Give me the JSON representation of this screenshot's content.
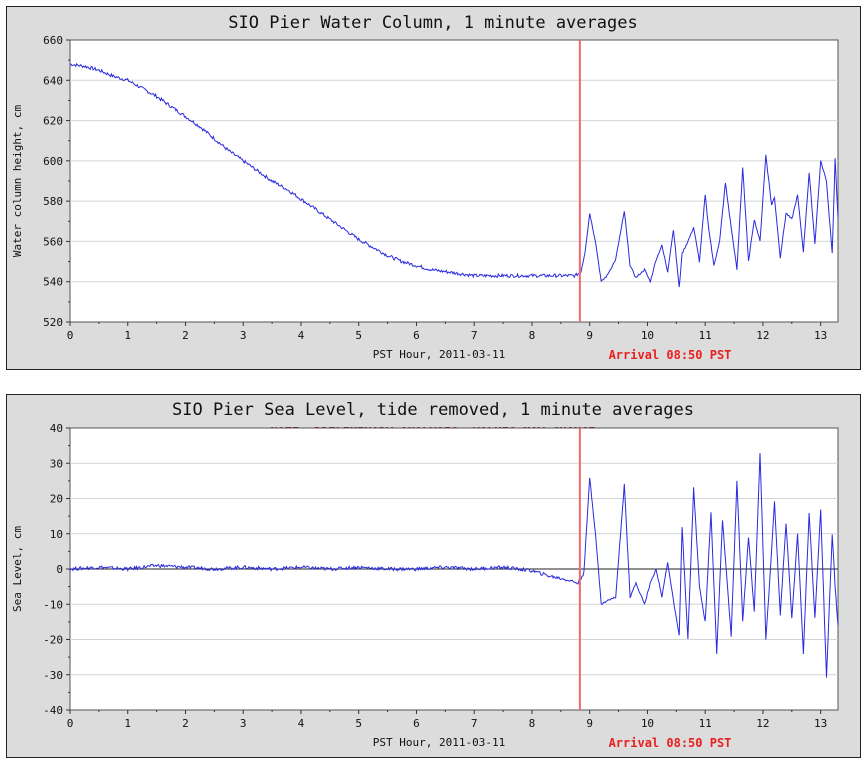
{
  "colors": {
    "series": "#2a2ae0",
    "arrival": "#ef6b6b",
    "arrival_text": "#e8201e",
    "note": "#8a1111",
    "zero_line": "#222222",
    "grid": "#d4d4d4",
    "panel_bg": "#dcdcdc"
  },
  "chart_data": [
    {
      "type": "line",
      "title": "SIO Pier Water Column, 1 minute averages",
      "note": "",
      "xlabel": "PST Hour, 2011-03-11",
      "ylabel": "Water column height, cm",
      "xlim": [
        0,
        13.3
      ],
      "ylim": [
        520,
        660
      ],
      "xticks": [
        0,
        1,
        2,
        3,
        4,
        5,
        6,
        7,
        8,
        9,
        10,
        11,
        12,
        13
      ],
      "yticks": [
        520,
        540,
        560,
        580,
        600,
        620,
        640,
        660
      ],
      "arrival_hour": 8.83,
      "arrival_label": "Arrival 08:50 PST",
      "zero_line": false,
      "grid": true,
      "series": [
        {
          "name": "Water column height",
          "x": [
            0,
            0.25,
            0.5,
            0.75,
            1,
            1.25,
            1.5,
            1.75,
            2,
            2.25,
            2.5,
            2.75,
            3,
            3.25,
            3.5,
            3.75,
            4,
            4.25,
            4.5,
            4.75,
            5,
            5.25,
            5.5,
            5.75,
            6,
            6.25,
            6.5,
            6.75,
            7,
            7.25,
            7.5,
            7.75,
            8,
            8.25,
            8.5,
            8.75,
            8.85,
            8.92,
            9,
            9.1,
            9.2,
            9.3,
            9.45,
            9.6,
            9.7,
            9.8,
            9.95,
            10.05,
            10.15,
            10.25,
            10.35,
            10.45,
            10.55,
            10.6,
            10.7,
            10.8,
            10.9,
            11,
            11.05,
            11.15,
            11.25,
            11.35,
            11.45,
            11.55,
            11.65,
            11.75,
            11.85,
            11.95,
            12.05,
            12.15,
            12.2,
            12.3,
            12.4,
            12.5,
            12.6,
            12.7,
            12.8,
            12.9,
            13,
            13.1,
            13.2,
            13.25,
            13.3
          ],
          "y": [
            648,
            647,
            645,
            642,
            640,
            636,
            632,
            627,
            622,
            617,
            611,
            605,
            600,
            595,
            590,
            586,
            581,
            576,
            571,
            566,
            561,
            557,
            553,
            550,
            548,
            546,
            545,
            544,
            543,
            543,
            543,
            543,
            543,
            543,
            543,
            543,
            545,
            555,
            574,
            560,
            540,
            543,
            551,
            575,
            548,
            542,
            546,
            540,
            551,
            558,
            545,
            566,
            537,
            554,
            560,
            567,
            550,
            583,
            569,
            548,
            560,
            589,
            567,
            546,
            597,
            550,
            571,
            560,
            603,
            578,
            582,
            552,
            574,
            571,
            583,
            555,
            594,
            559,
            600,
            590,
            554,
            601,
            572
          ]
        }
      ]
    },
    {
      "type": "line",
      "title": "SIO Pier Sea Level, tide removed, 1 minute averages",
      "note": "NOTE: PRELIMINARY ANALYSIS, VALUES MAY CHANGE",
      "xlabel": "PST Hour, 2011-03-11",
      "ylabel": "Sea Level, cm",
      "xlim": [
        0,
        13.3
      ],
      "ylim": [
        -40,
        40
      ],
      "xticks": [
        0,
        1,
        2,
        3,
        4,
        5,
        6,
        7,
        8,
        9,
        10,
        11,
        12,
        13
      ],
      "yticks": [
        -40,
        -30,
        -20,
        -10,
        0,
        10,
        20,
        30,
        40
      ],
      "arrival_hour": 8.83,
      "arrival_label": "Arrival 08:50 PST",
      "zero_line": true,
      "grid": true,
      "series": [
        {
          "name": "Sea level",
          "x": [
            0,
            0.5,
            1,
            1.5,
            2,
            2.5,
            3,
            3.5,
            4,
            4.5,
            5,
            5.5,
            6,
            6.5,
            7,
            7.5,
            8,
            8.3,
            8.6,
            8.8,
            8.9,
            9,
            9.1,
            9.2,
            9.3,
            9.45,
            9.6,
            9.7,
            9.8,
            9.95,
            10.05,
            10.15,
            10.25,
            10.35,
            10.45,
            10.55,
            10.6,
            10.7,
            10.8,
            10.9,
            11,
            11.1,
            11.2,
            11.3,
            11.45,
            11.55,
            11.65,
            11.75,
            11.85,
            11.95,
            12.05,
            12.1,
            12.2,
            12.3,
            12.4,
            12.5,
            12.6,
            12.7,
            12.8,
            12.9,
            13,
            13.1,
            13.2,
            13.25,
            13.3
          ],
          "y": [
            0,
            0.5,
            0,
            1,
            0.5,
            0,
            0.5,
            0,
            0.5,
            0,
            0.5,
            0,
            0,
            0.5,
            0,
            0.5,
            -0.5,
            -2,
            -3,
            -4,
            -1,
            26,
            10,
            -10,
            -9,
            -8,
            24,
            -8,
            -4,
            -10,
            -4,
            0,
            -8,
            2,
            -9,
            -19,
            12,
            -20,
            23,
            -5,
            -15,
            16,
            -24,
            14,
            -19,
            25,
            -15,
            9,
            -12,
            33,
            -20,
            -8,
            19,
            -13,
            13,
            -14,
            10,
            -24,
            16,
            -14,
            17,
            -31,
            10,
            -5,
            -16
          ]
        }
      ]
    }
  ]
}
